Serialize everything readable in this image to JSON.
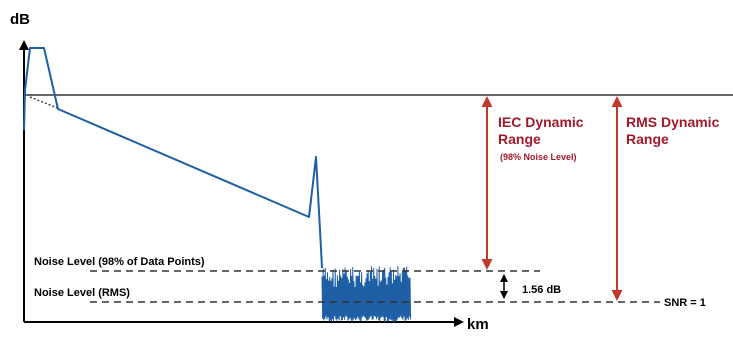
{
  "axes": {
    "y_label": "dB",
    "x_label": "km"
  },
  "labels": {
    "noise_98": "Noise Level (98% of Data Points)",
    "noise_rms": "Noise Level (RMS)",
    "difference": "1.56 dB",
    "snr": "SNR = 1",
    "iec_line1": "IEC Dynamic",
    "iec_line2": "Range",
    "iec_note": "(98% Noise Level)",
    "rms_line1": "RMS Dynamic",
    "rms_line2": "Range"
  },
  "colors": {
    "trace": "#1f5fa6",
    "arrow_red": "#c0392b",
    "label_red": "#a0192b",
    "axis": "#000000",
    "reference_line": "#333333"
  }
}
